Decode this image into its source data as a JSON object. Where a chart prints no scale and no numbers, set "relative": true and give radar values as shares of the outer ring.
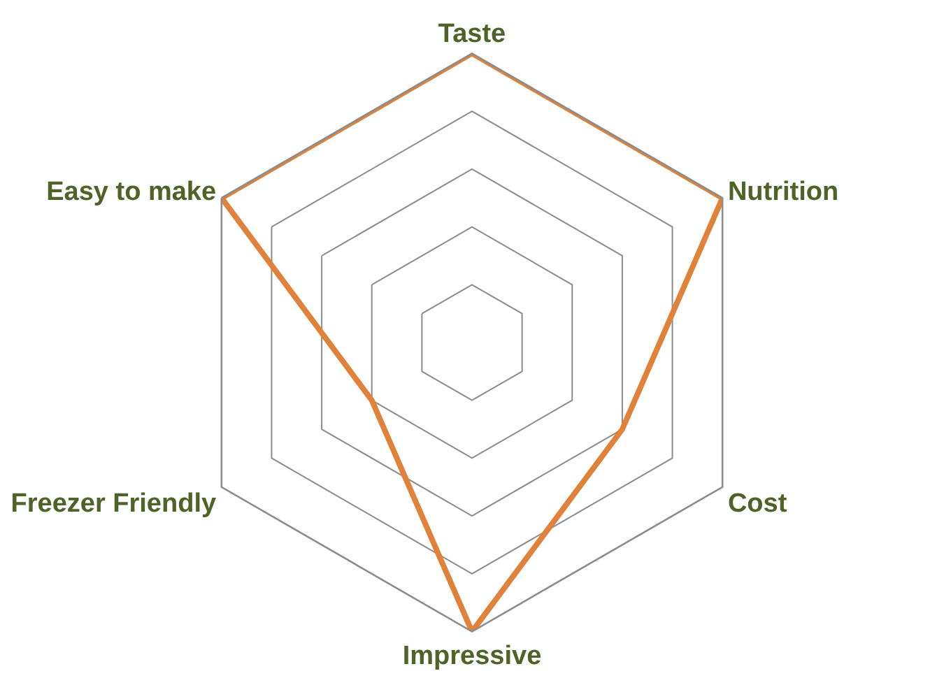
{
  "chart_data": {
    "type": "radar",
    "relative": true,
    "grid": true,
    "categories": [
      "Taste",
      "Nutrition",
      "Cost",
      "Impressive",
      "Freezer Friendly",
      "Easy to make"
    ],
    "series": [
      {
        "color": "#e0823a",
        "values": [
          1,
          1,
          0.6,
          1,
          0.4,
          1
        ]
      }
    ]
  }
}
